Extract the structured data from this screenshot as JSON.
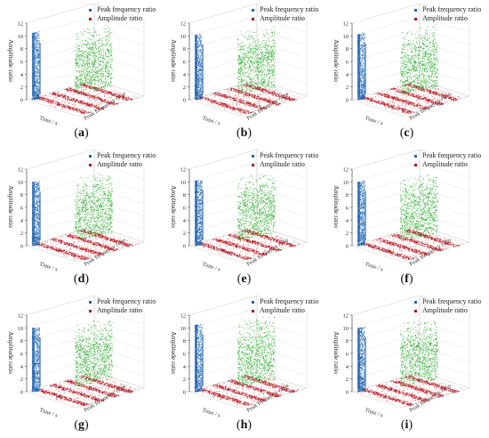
{
  "colors": {
    "peak_frequency": "#1f63b0",
    "amplitude": "#1aa51a",
    "base": "#b3121b",
    "axis": "#555555"
  },
  "chart_data": [
    {
      "panel_label": "(a)",
      "type": "scatter",
      "legend": [
        "Peak frequency ratio",
        "Amplitude ratio"
      ],
      "ylabel": "Amplitude ratio",
      "yticks": [
        "0",
        "2",
        "4",
        "6",
        "8",
        "10",
        "12"
      ],
      "ylim": [
        0,
        12
      ],
      "xlabel": "Time / s",
      "zlabel": "Peak frequency ratio",
      "blue_peak": 10.5,
      "green_peak": 10.5
    },
    {
      "panel_label": "(b)",
      "type": "scatter",
      "legend": [
        "Peak frequency ratio",
        "Amplitude ratio"
      ],
      "ylabel": "Amplitude ratio",
      "yticks": [
        "0",
        "2",
        "4",
        "6",
        "8",
        "10",
        "12"
      ],
      "ylim": [
        0,
        12
      ],
      "xlabel": "Time / s",
      "zlabel": "Peak frequency ratio",
      "blue_peak": 10.2,
      "green_peak": 10.0
    },
    {
      "panel_label": "(c)",
      "type": "scatter",
      "legend": [
        "Peak frequency ratio",
        "Amplitude ratio"
      ],
      "ylabel": "Amplitude ratio",
      "yticks": [
        "0",
        "2",
        "4",
        "6",
        "8",
        "10",
        "12"
      ],
      "ylim": [
        0,
        12
      ],
      "xlabel": "Time / s",
      "zlabel": "Peak frequency ratio",
      "blue_peak": 10.3,
      "green_peak": 10.0
    },
    {
      "panel_label": "(d)",
      "type": "scatter",
      "legend": [
        "Peak frequency ratio",
        "Amplitude ratio"
      ],
      "ylabel": "Amplitude ratio",
      "yticks": [
        "0",
        "2",
        "4",
        "6",
        "8",
        "10",
        "12"
      ],
      "ylim": [
        0,
        12
      ],
      "xlabel": "Time / s",
      "zlabel": "Peak frequency ratio",
      "blue_peak": 10.0,
      "green_peak": 10.0
    },
    {
      "panel_label": "(e)",
      "type": "scatter",
      "legend": [
        "Peak frequency ratio",
        "Amplitude ratio"
      ],
      "ylabel": "Amplitude ratio",
      "yticks": [
        "0",
        "2",
        "4",
        "6",
        "8",
        "10",
        "12"
      ],
      "ylim": [
        0,
        12
      ],
      "xlabel": "Time / s",
      "zlabel": "Peak frequency ratio",
      "blue_peak": 10.2,
      "green_peak": 10.2
    },
    {
      "panel_label": "(f)",
      "type": "scatter",
      "legend": [
        "Peak frequency ratio",
        "Amplitude ratio"
      ],
      "ylabel": "Amplitude ratio",
      "yticks": [
        "0",
        "2",
        "4",
        "6",
        "8",
        "10",
        "12"
      ],
      "ylim": [
        0,
        12
      ],
      "xlabel": "Time / s",
      "zlabel": "Peak frequency ratio",
      "blue_peak": 10.0,
      "green_peak": 10.0
    },
    {
      "panel_label": "(g)",
      "type": "scatter",
      "legend": [
        "Peak frequency ratio",
        "Amplitude ratio"
      ],
      "ylabel": "Amplitude ratio",
      "yticks": [
        "0",
        "2",
        "4",
        "6",
        "8",
        "10",
        "12"
      ],
      "ylim": [
        0,
        12
      ],
      "xlabel": "Time / s",
      "zlabel": "Peak frequency ratio",
      "blue_peak": 10.0,
      "green_peak": 10.0
    },
    {
      "panel_label": "(h)",
      "type": "scatter",
      "legend": [
        "Peak frequency ratio",
        "Amplitude ratio"
      ],
      "ylabel": "Amplitude ratio",
      "yticks": [
        "0",
        "2",
        "4",
        "6",
        "8",
        "10",
        "12"
      ],
      "ylim": [
        0,
        12
      ],
      "xlabel": "Time / s",
      "zlabel": "Peak frequency ratio",
      "blue_peak": 10.5,
      "green_peak": 10.5
    },
    {
      "panel_label": "(i)",
      "type": "scatter",
      "legend": [
        "Peak frequency ratio",
        "Amplitude ratio"
      ],
      "ylabel": "Amplitude ratio",
      "yticks": [
        "0",
        "2",
        "4",
        "6",
        "8",
        "10",
        "12"
      ],
      "ylim": [
        0,
        12
      ],
      "xlabel": "Time / s",
      "zlabel": "Peak frequency ratio",
      "blue_peak": 10.0,
      "green_peak": 10.0
    }
  ]
}
